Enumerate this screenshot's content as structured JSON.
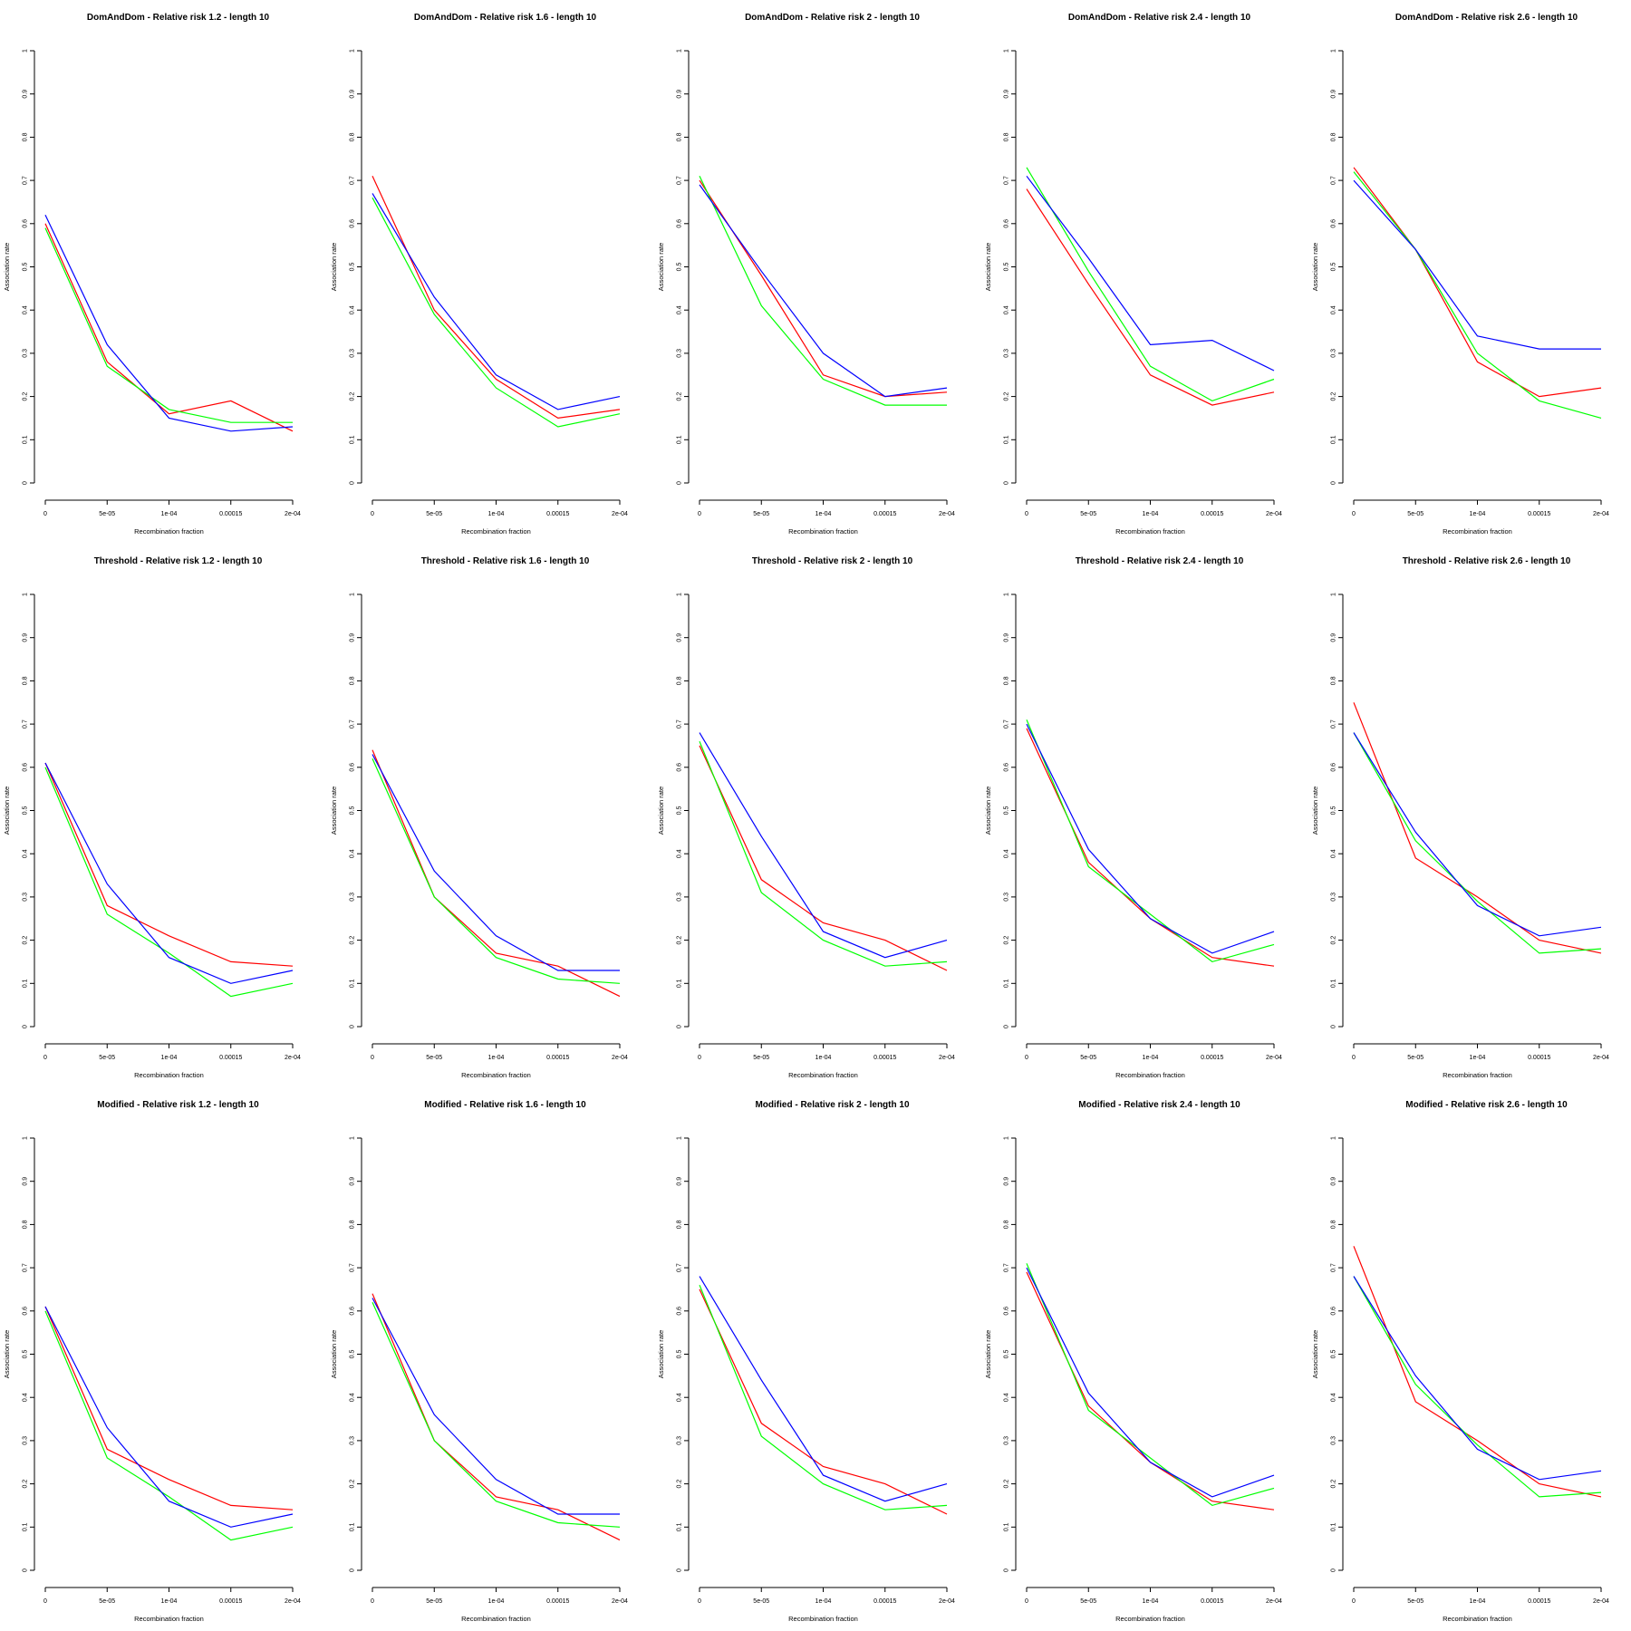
{
  "colors": {
    "red": "#ff0000",
    "green": "#00ff00",
    "blue": "#0000ff"
  },
  "chart_data": [
    {
      "type": "line",
      "title": "DomAndDom  - Relative risk 1.2 - length 10",
      "xlabel": "Recombination fraction",
      "ylabel": "Association rate",
      "categories": [
        "0",
        "5e-05",
        "1e-04",
        "0.00015",
        "2e-04"
      ],
      "ylim": [
        0,
        1
      ],
      "yticks": [
        "0",
        "0.1",
        "0.2",
        "0.3",
        "0.4",
        "0.5",
        "0.6",
        "0.7",
        "0.8",
        "0.9",
        "1"
      ],
      "series": [
        {
          "color": "red",
          "values": [
            0.6,
            0.28,
            0.16,
            0.19,
            0.12
          ]
        },
        {
          "color": "green",
          "values": [
            0.59,
            0.27,
            0.17,
            0.14,
            0.14
          ]
        },
        {
          "color": "blue",
          "values": [
            0.62,
            0.32,
            0.15,
            0.12,
            0.13
          ]
        }
      ]
    },
    {
      "type": "line",
      "title": "DomAndDom  - Relative risk 1.6 - length 10",
      "xlabel": "Recombination fraction",
      "ylabel": "Association rate",
      "categories": [
        "0",
        "5e-05",
        "1e-04",
        "0.00015",
        "2e-04"
      ],
      "ylim": [
        0,
        1
      ],
      "yticks": [
        "0",
        "0.1",
        "0.2",
        "0.3",
        "0.4",
        "0.5",
        "0.6",
        "0.7",
        "0.8",
        "0.9",
        "1"
      ],
      "series": [
        {
          "color": "red",
          "values": [
            0.71,
            0.4,
            0.24,
            0.15,
            0.17
          ]
        },
        {
          "color": "green",
          "values": [
            0.66,
            0.39,
            0.22,
            0.13,
            0.16
          ]
        },
        {
          "color": "blue",
          "values": [
            0.67,
            0.43,
            0.25,
            0.17,
            0.2
          ]
        }
      ]
    },
    {
      "type": "line",
      "title": "DomAndDom  - Relative risk 2 - length 10",
      "xlabel": "Recombination fraction",
      "ylabel": "Association rate",
      "categories": [
        "0",
        "5e-05",
        "1e-04",
        "0.00015",
        "2e-04"
      ],
      "ylim": [
        0,
        1
      ],
      "yticks": [
        "0",
        "0.1",
        "0.2",
        "0.3",
        "0.4",
        "0.5",
        "0.6",
        "0.7",
        "0.8",
        "0.9",
        "1"
      ],
      "series": [
        {
          "color": "red",
          "values": [
            0.7,
            0.48,
            0.25,
            0.2,
            0.21
          ]
        },
        {
          "color": "green",
          "values": [
            0.71,
            0.41,
            0.24,
            0.18,
            0.18
          ]
        },
        {
          "color": "blue",
          "values": [
            0.69,
            0.49,
            0.3,
            0.2,
            0.22
          ]
        }
      ]
    },
    {
      "type": "line",
      "title": "DomAndDom  - Relative risk 2.4 - length 10",
      "xlabel": "Recombination fraction",
      "ylabel": "Association rate",
      "categories": [
        "0",
        "5e-05",
        "1e-04",
        "0.00015",
        "2e-04"
      ],
      "ylim": [
        0,
        1
      ],
      "yticks": [
        "0",
        "0.1",
        "0.2",
        "0.3",
        "0.4",
        "0.5",
        "0.6",
        "0.7",
        "0.8",
        "0.9",
        "1"
      ],
      "series": [
        {
          "color": "red",
          "values": [
            0.68,
            0.46,
            0.25,
            0.18,
            0.21
          ]
        },
        {
          "color": "green",
          "values": [
            0.73,
            0.49,
            0.27,
            0.19,
            0.24
          ]
        },
        {
          "color": "blue",
          "values": [
            0.71,
            0.52,
            0.32,
            0.33,
            0.26
          ]
        }
      ]
    },
    {
      "type": "line",
      "title": "DomAndDom  - Relative risk 2.6 - length 10",
      "xlabel": "Recombination fraction",
      "ylabel": "Association rate",
      "categories": [
        "0",
        "5e-05",
        "1e-04",
        "0.00015",
        "2e-04"
      ],
      "ylim": [
        0,
        1
      ],
      "yticks": [
        "0",
        "0.1",
        "0.2",
        "0.3",
        "0.4",
        "0.5",
        "0.6",
        "0.7",
        "0.8",
        "0.9",
        "1"
      ],
      "series": [
        {
          "color": "red",
          "values": [
            0.73,
            0.54,
            0.28,
            0.2,
            0.22
          ]
        },
        {
          "color": "green",
          "values": [
            0.72,
            0.54,
            0.3,
            0.19,
            0.15
          ]
        },
        {
          "color": "blue",
          "values": [
            0.7,
            0.54,
            0.34,
            0.31,
            0.31
          ]
        }
      ]
    },
    {
      "type": "line",
      "title": "Threshold  - Relative risk 1.2 - length 10",
      "xlabel": "Recombination fraction",
      "ylabel": "Association rate",
      "categories": [
        "0",
        "5e-05",
        "1e-04",
        "0.00015",
        "2e-04"
      ],
      "ylim": [
        0,
        1
      ],
      "yticks": [
        "0",
        "0.1",
        "0.2",
        "0.3",
        "0.4",
        "0.5",
        "0.6",
        "0.7",
        "0.8",
        "0.9",
        "1"
      ],
      "series": [
        {
          "color": "red",
          "values": [
            0.61,
            0.28,
            0.21,
            0.15,
            0.14
          ]
        },
        {
          "color": "green",
          "values": [
            0.6,
            0.26,
            0.17,
            0.07,
            0.1
          ]
        },
        {
          "color": "blue",
          "values": [
            0.61,
            0.33,
            0.16,
            0.1,
            0.13
          ]
        }
      ]
    },
    {
      "type": "line",
      "title": "Threshold  - Relative risk 1.6 - length 10",
      "xlabel": "Recombination fraction",
      "ylabel": "Association rate",
      "categories": [
        "0",
        "5e-05",
        "1e-04",
        "0.00015",
        "2e-04"
      ],
      "ylim": [
        0,
        1
      ],
      "yticks": [
        "0",
        "0.1",
        "0.2",
        "0.3",
        "0.4",
        "0.5",
        "0.6",
        "0.7",
        "0.8",
        "0.9",
        "1"
      ],
      "series": [
        {
          "color": "red",
          "values": [
            0.64,
            0.3,
            0.17,
            0.14,
            0.07
          ]
        },
        {
          "color": "green",
          "values": [
            0.62,
            0.3,
            0.16,
            0.11,
            0.1
          ]
        },
        {
          "color": "blue",
          "values": [
            0.63,
            0.36,
            0.21,
            0.13,
            0.13
          ]
        }
      ]
    },
    {
      "type": "line",
      "title": "Threshold  - Relative risk 2 - length 10",
      "xlabel": "Recombination fraction",
      "ylabel": "Association rate",
      "categories": [
        "0",
        "5e-05",
        "1e-04",
        "0.00015",
        "2e-04"
      ],
      "ylim": [
        0,
        1
      ],
      "yticks": [
        "0",
        "0.1",
        "0.2",
        "0.3",
        "0.4",
        "0.5",
        "0.6",
        "0.7",
        "0.8",
        "0.9",
        "1"
      ],
      "series": [
        {
          "color": "red",
          "values": [
            0.65,
            0.34,
            0.24,
            0.2,
            0.13
          ]
        },
        {
          "color": "green",
          "values": [
            0.66,
            0.31,
            0.2,
            0.14,
            0.15
          ]
        },
        {
          "color": "blue",
          "values": [
            0.68,
            0.44,
            0.22,
            0.16,
            0.2
          ]
        }
      ]
    },
    {
      "type": "line",
      "title": "Threshold  - Relative risk 2.4 - length 10",
      "xlabel": "Recombination fraction",
      "ylabel": "Association rate",
      "categories": [
        "0",
        "5e-05",
        "1e-04",
        "0.00015",
        "2e-04"
      ],
      "ylim": [
        0,
        1
      ],
      "yticks": [
        "0",
        "0.1",
        "0.2",
        "0.3",
        "0.4",
        "0.5",
        "0.6",
        "0.7",
        "0.8",
        "0.9",
        "1"
      ],
      "series": [
        {
          "color": "red",
          "values": [
            0.69,
            0.38,
            0.25,
            0.16,
            0.14
          ]
        },
        {
          "color": "green",
          "values": [
            0.71,
            0.37,
            0.26,
            0.15,
            0.19
          ]
        },
        {
          "color": "blue",
          "values": [
            0.7,
            0.41,
            0.25,
            0.17,
            0.22
          ]
        }
      ]
    },
    {
      "type": "line",
      "title": "Threshold  - Relative risk 2.6 - length 10",
      "xlabel": "Recombination fraction",
      "ylabel": "Association rate",
      "categories": [
        "0",
        "5e-05",
        "1e-04",
        "0.00015",
        "2e-04"
      ],
      "ylim": [
        0,
        1
      ],
      "yticks": [
        "0",
        "0.1",
        "0.2",
        "0.3",
        "0.4",
        "0.5",
        "0.6",
        "0.7",
        "0.8",
        "0.9",
        "1"
      ],
      "series": [
        {
          "color": "red",
          "values": [
            0.75,
            0.39,
            0.3,
            0.2,
            0.17
          ]
        },
        {
          "color": "green",
          "values": [
            0.68,
            0.43,
            0.29,
            0.17,
            0.18
          ]
        },
        {
          "color": "blue",
          "values": [
            0.68,
            0.45,
            0.28,
            0.21,
            0.23
          ]
        }
      ]
    },
    {
      "type": "line",
      "title": "Modified  - Relative risk 1.2 - length 10",
      "xlabel": "Recombination fraction",
      "ylabel": "Association rate",
      "categories": [
        "0",
        "5e-05",
        "1e-04",
        "0.00015",
        "2e-04"
      ],
      "ylim": [
        0,
        1
      ],
      "yticks": [
        "0",
        "0.1",
        "0.2",
        "0.3",
        "0.4",
        "0.5",
        "0.6",
        "0.7",
        "0.8",
        "0.9",
        "1"
      ],
      "series": [
        {
          "color": "red",
          "values": [
            0.61,
            0.28,
            0.21,
            0.15,
            0.14
          ]
        },
        {
          "color": "green",
          "values": [
            0.6,
            0.26,
            0.17,
            0.07,
            0.1
          ]
        },
        {
          "color": "blue",
          "values": [
            0.61,
            0.33,
            0.16,
            0.1,
            0.13
          ]
        }
      ]
    },
    {
      "type": "line",
      "title": "Modified  - Relative risk 1.6 - length 10",
      "xlabel": "Recombination fraction",
      "ylabel": "Association rate",
      "categories": [
        "0",
        "5e-05",
        "1e-04",
        "0.00015",
        "2e-04"
      ],
      "ylim": [
        0,
        1
      ],
      "yticks": [
        "0",
        "0.1",
        "0.2",
        "0.3",
        "0.4",
        "0.5",
        "0.6",
        "0.7",
        "0.8",
        "0.9",
        "1"
      ],
      "series": [
        {
          "color": "red",
          "values": [
            0.64,
            0.3,
            0.17,
            0.14,
            0.07
          ]
        },
        {
          "color": "green",
          "values": [
            0.62,
            0.3,
            0.16,
            0.11,
            0.1
          ]
        },
        {
          "color": "blue",
          "values": [
            0.63,
            0.36,
            0.21,
            0.13,
            0.13
          ]
        }
      ]
    },
    {
      "type": "line",
      "title": "Modified  - Relative risk 2 - length 10",
      "xlabel": "Recombination fraction",
      "ylabel": "Association rate",
      "categories": [
        "0",
        "5e-05",
        "1e-04",
        "0.00015",
        "2e-04"
      ],
      "ylim": [
        0,
        1
      ],
      "yticks": [
        "0",
        "0.1",
        "0.2",
        "0.3",
        "0.4",
        "0.5",
        "0.6",
        "0.7",
        "0.8",
        "0.9",
        "1"
      ],
      "series": [
        {
          "color": "red",
          "values": [
            0.65,
            0.34,
            0.24,
            0.2,
            0.13
          ]
        },
        {
          "color": "green",
          "values": [
            0.66,
            0.31,
            0.2,
            0.14,
            0.15
          ]
        },
        {
          "color": "blue",
          "values": [
            0.68,
            0.44,
            0.22,
            0.16,
            0.2
          ]
        }
      ]
    },
    {
      "type": "line",
      "title": "Modified  - Relative risk 2.4 - length 10",
      "xlabel": "Recombination fraction",
      "ylabel": "Association rate",
      "categories": [
        "0",
        "5e-05",
        "1e-04",
        "0.00015",
        "2e-04"
      ],
      "ylim": [
        0,
        1
      ],
      "yticks": [
        "0",
        "0.1",
        "0.2",
        "0.3",
        "0.4",
        "0.5",
        "0.6",
        "0.7",
        "0.8",
        "0.9",
        "1"
      ],
      "series": [
        {
          "color": "red",
          "values": [
            0.69,
            0.38,
            0.25,
            0.16,
            0.14
          ]
        },
        {
          "color": "green",
          "values": [
            0.71,
            0.37,
            0.26,
            0.15,
            0.19
          ]
        },
        {
          "color": "blue",
          "values": [
            0.7,
            0.41,
            0.25,
            0.17,
            0.22
          ]
        }
      ]
    },
    {
      "type": "line",
      "title": "Modified  - Relative risk 2.6 - length 10",
      "xlabel": "Recombination fraction",
      "ylabel": "Association rate",
      "categories": [
        "0",
        "5e-05",
        "1e-04",
        "0.00015",
        "2e-04"
      ],
      "ylim": [
        0,
        1
      ],
      "yticks": [
        "0",
        "0.1",
        "0.2",
        "0.3",
        "0.4",
        "0.5",
        "0.6",
        "0.7",
        "0.8",
        "0.9",
        "1"
      ],
      "series": [
        {
          "color": "red",
          "values": [
            0.75,
            0.39,
            0.3,
            0.2,
            0.17
          ]
        },
        {
          "color": "green",
          "values": [
            0.68,
            0.43,
            0.29,
            0.17,
            0.18
          ]
        },
        {
          "color": "blue",
          "values": [
            0.68,
            0.45,
            0.28,
            0.21,
            0.23
          ]
        }
      ]
    }
  ]
}
